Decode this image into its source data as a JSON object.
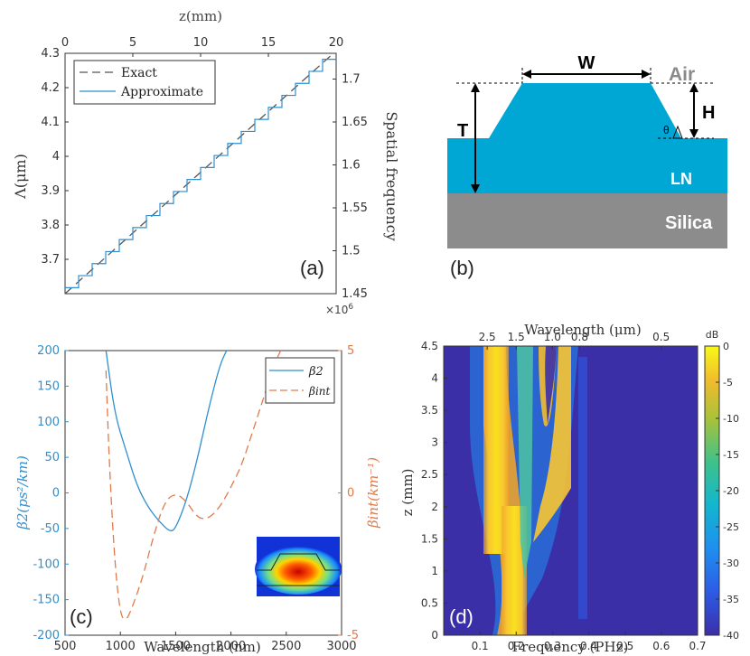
{
  "colors": {
    "blue": "#2f8fcf",
    "orange": "#e07a4a",
    "waveguide": "#00a6d4",
    "silica": "#8c8c8c",
    "gray_label": "#6e6e6e"
  },
  "panel_a": {
    "label": "(a)",
    "top_axis_label": "z(mm)",
    "left_axis_label": "Λ(μm)",
    "right_axis_label": "Spatial frequency",
    "right_multiplier": "×10",
    "right_multiplier_exp": "6",
    "legend": [
      "Exact",
      "Approximate"
    ]
  },
  "panel_b": {
    "label": "(b)",
    "air": "Air",
    "ln": "LN",
    "silica": "Silica",
    "w": "W",
    "h": "H",
    "t": "T",
    "theta": "θ"
  },
  "panel_c": {
    "label": "(c)",
    "xlabel": "Wavelength (nm)",
    "ylabel_left": "β2(ps²/km)",
    "ylabel_right": "βint(km⁻¹)",
    "legend": [
      "β2",
      "βint"
    ]
  },
  "panel_d": {
    "label": "(d)",
    "top_axis_label": "Wavelength (μm)",
    "xlabel": "Frequency (PHz)",
    "ylabel": "z (mm)",
    "colorbar_unit": "dB"
  },
  "chart_data": [
    {
      "type": "line",
      "panel": "a",
      "x_bottom_label": "",
      "x_top_label": "z(mm)",
      "x": [
        0,
        20
      ],
      "xlim": [
        0,
        20
      ],
      "xticks": [
        "0",
        "5",
        "10",
        "15",
        "20"
      ],
      "ylabel": "Λ(μm)",
      "ylim": [
        3.6,
        4.3
      ],
      "yticks": [
        "3.7",
        "3.8",
        "3.9",
        "4",
        "4.1",
        "4.2",
        "4.3"
      ],
      "y2label": "Spatial frequency",
      "y2lim": [
        1.45,
        1.73
      ],
      "y2ticks": [
        "1.45",
        "1.5",
        "1.55",
        "1.6",
        "1.65",
        "1.7"
      ],
      "series": [
        {
          "name": "Exact",
          "style": "dashed",
          "values": [
            3.6,
            4.3
          ]
        },
        {
          "name": "Approximate",
          "style": "staircase",
          "steps": 20,
          "values": [
            3.6,
            4.3
          ]
        }
      ]
    },
    {
      "type": "line",
      "panel": "c",
      "xlabel": "Wavelength (nm)",
      "xlim": [
        500,
        3000
      ],
      "xticks": [
        "500",
        "1000",
        "1500",
        "2000",
        "2500",
        "3000"
      ],
      "ylabel": "β2(ps²/km)",
      "ylim": [
        -200,
        200
      ],
      "yticks": [
        "200",
        "150",
        "100",
        "50",
        "0",
        "-50",
        "-100",
        "-150",
        "-200"
      ],
      "y2label": "βint(km⁻¹)",
      "y2lim": [
        -5,
        5
      ],
      "y2ticks": [
        "5",
        "0",
        "-5"
      ],
      "series": [
        {
          "name": "β2",
          "axis": "left",
          "x": [
            870,
            950,
            1050,
            1150,
            1250,
            1350,
            1450,
            1500,
            1600,
            1700,
            1800,
            1900,
            1960
          ],
          "values": [
            200,
            110,
            60,
            10,
            -20,
            -40,
            -55,
            -50,
            -10,
            50,
            120,
            180,
            200
          ]
        },
        {
          "name": "βint",
          "axis": "right",
          "x": [
            870,
            900,
            950,
            1000,
            1050,
            1100,
            1200,
            1300,
            1400,
            1500,
            1600,
            1700,
            1800,
            1900,
            2000,
            2100,
            2200,
            2300,
            2400,
            2450
          ],
          "values": [
            4.3,
            1.0,
            -2.5,
            -4.3,
            -4.5,
            -4.1,
            -3.0,
            -1.5,
            -0.3,
            0,
            -0.3,
            -0.9,
            -0.9,
            -0.5,
            0.2,
            1.0,
            2.2,
            3.4,
            4.6,
            5
          ]
        }
      ]
    },
    {
      "type": "heatmap",
      "panel": "d",
      "xlabel": "Frequency (PHz)",
      "xlim": [
        0,
        0.7
      ],
      "xticks": [
        "0.1",
        "0.2",
        "0.3",
        "0.4",
        "0.5",
        "0.6",
        "0.7"
      ],
      "x2label": "Wavelength (μm)",
      "x2ticks": [
        "2.5",
        "1.5",
        "1.0",
        "0.8",
        "0.5"
      ],
      "ylabel": "z (mm)",
      "ylim": [
        0,
        4.5
      ],
      "yticks": [
        "0",
        "0.5",
        "1",
        "1.5",
        "2",
        "2.5",
        "3",
        "3.5",
        "4",
        "4.5"
      ],
      "colorbar_label": "dB",
      "colorbar_range": [
        -40,
        0
      ],
      "colorbar_ticks": [
        "0",
        "-5",
        "-10",
        "-15",
        "-20",
        "-25",
        "-30",
        "-35",
        "-40"
      ]
    }
  ]
}
